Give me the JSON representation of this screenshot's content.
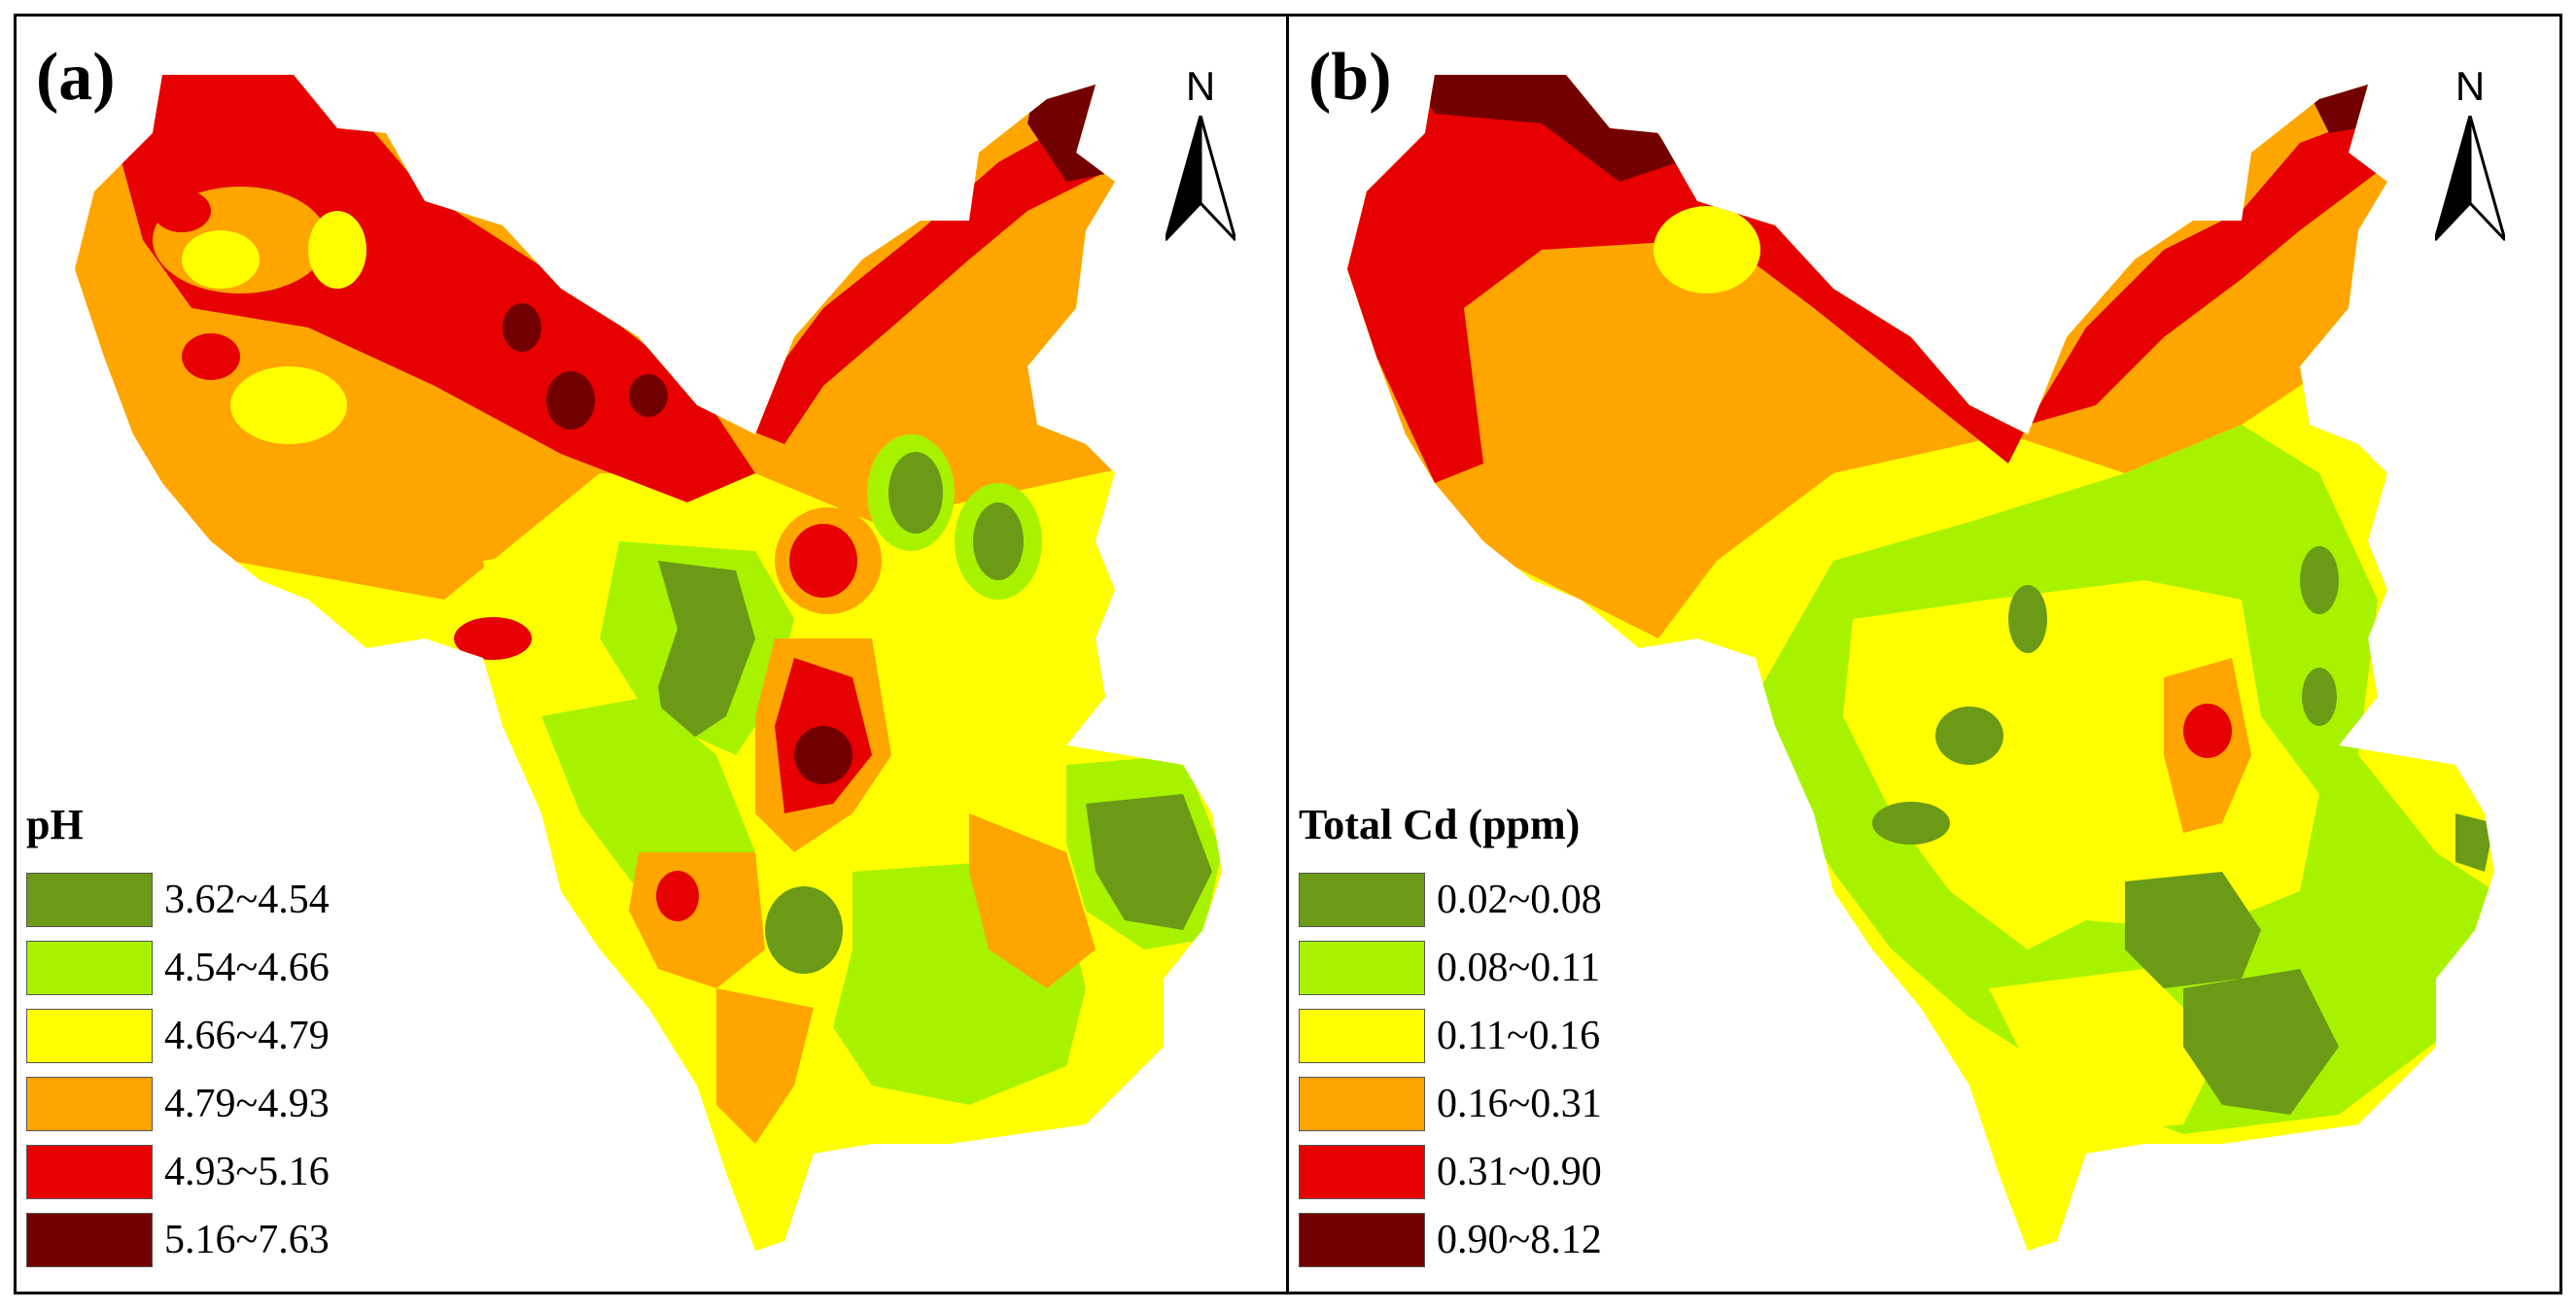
{
  "colors": {
    "c1": "#6b9a17",
    "c2": "#a8f200",
    "c3": "#ffff00",
    "c4": "#ffa500",
    "c5": "#e60000",
    "c6": "#730000"
  },
  "panels": [
    {
      "label": "(a)",
      "north": "N",
      "legend_title": "pH",
      "legend": [
        {
          "label": "3.62~4.54",
          "color": "#6b9a17"
        },
        {
          "label": "4.54~4.66",
          "color": "#a8f200"
        },
        {
          "label": "4.66~4.79",
          "color": "#ffff00"
        },
        {
          "label": "4.79~4.93",
          "color": "#ffa500"
        },
        {
          "label": "4.93~5.16",
          "color": "#e60000"
        },
        {
          "label": "5.16~7.63",
          "color": "#730000"
        }
      ]
    },
    {
      "label": "(b)",
      "north": "N",
      "legend_title": "Total Cd (ppm)",
      "legend": [
        {
          "label": "0.02~0.08",
          "color": "#6b9a17"
        },
        {
          "label": "0.08~0.11",
          "color": "#a8f200"
        },
        {
          "label": "0.11~0.16",
          "color": "#ffff00"
        },
        {
          "label": "0.16~0.31",
          "color": "#ffa500"
        },
        {
          "label": "0.31~0.90",
          "color": "#e60000"
        },
        {
          "label": "0.90~8.12",
          "color": "#730000"
        }
      ]
    }
  ]
}
